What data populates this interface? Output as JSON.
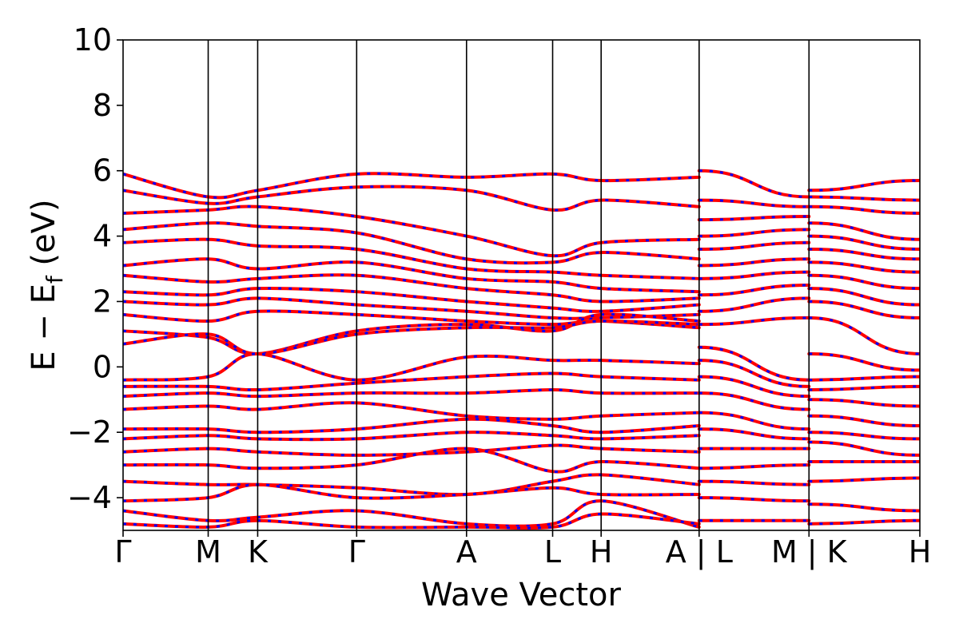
{
  "chart_data": {
    "type": "line",
    "title": "",
    "xlabel": "Wave Vector",
    "ylabel": {
      "main": "E − E",
      "sub": "f",
      "unit": " (eV)"
    },
    "ylim": [
      -5,
      10
    ],
    "yticks": [
      -4,
      -2,
      0,
      2,
      4,
      6,
      8,
      10
    ],
    "ytick_labels": [
      "−4",
      "−2",
      "0",
      "2",
      "4",
      "6",
      "8",
      "10"
    ],
    "xlim": [
      0,
      8.05
    ],
    "kpoints": [
      {
        "label": "Γ",
        "x": 0
      },
      {
        "label": "M",
        "x": 0.86
      },
      {
        "label": "K",
        "x": 1.36
      },
      {
        "label": "Γ",
        "x": 2.36
      },
      {
        "label": "A",
        "x": 3.47
      },
      {
        "label": "L",
        "x": 4.34
      },
      {
        "label": "H",
        "x": 4.83
      },
      {
        "label": "A | L",
        "x": 5.82
      },
      {
        "label": "M | K",
        "x": 6.93
      },
      {
        "label": "H",
        "x": 8.05
      }
    ],
    "segment_breaks": [
      5.82,
      6.93
    ],
    "grid": false,
    "legend": "none",
    "colors": {
      "spin_a": "#ff0000",
      "spin_b": "#0000ff"
    },
    "series": [
      {
        "x": [
          0,
          0.86,
          1.36,
          2.36,
          3.47,
          4.34,
          4.83,
          5.82
        ],
        "values": [
          5.9,
          5.2,
          5.4,
          5.9,
          5.8,
          5.9,
          5.7,
          5.8
        ]
      },
      {
        "x": [
          0,
          0.86,
          1.36,
          2.36,
          3.47,
          4.34,
          4.83,
          5.82
        ],
        "values": [
          5.4,
          5.0,
          5.2,
          5.5,
          5.4,
          4.8,
          5.1,
          4.9
        ]
      },
      {
        "x": [
          0,
          0.86,
          1.36,
          2.36,
          3.47,
          4.34,
          4.83,
          5.82
        ],
        "values": [
          4.7,
          4.8,
          4.9,
          4.6,
          4.0,
          3.4,
          3.8,
          3.9
        ]
      },
      {
        "x": [
          0,
          0.86,
          1.36,
          2.36,
          3.47,
          4.34,
          4.83,
          5.82
        ],
        "values": [
          4.2,
          4.4,
          4.3,
          4.1,
          3.3,
          3.2,
          3.5,
          3.3
        ]
      },
      {
        "x": [
          0,
          0.86,
          1.36,
          2.36,
          3.47,
          4.34,
          4.83,
          5.82
        ],
        "values": [
          3.8,
          3.9,
          3.7,
          3.6,
          3.0,
          2.9,
          2.8,
          2.7
        ]
      },
      {
        "x": [
          0,
          0.86,
          1.36,
          2.36,
          3.47,
          4.34,
          4.83,
          5.82
        ],
        "values": [
          3.1,
          3.3,
          3.0,
          3.2,
          2.7,
          2.6,
          2.4,
          2.3
        ]
      },
      {
        "x": [
          0,
          0.86,
          1.36,
          2.36,
          3.47,
          4.34,
          4.83,
          5.82
        ],
        "values": [
          2.8,
          2.6,
          2.7,
          2.8,
          2.4,
          2.2,
          2.0,
          2.1
        ]
      },
      {
        "x": [
          0,
          0.86,
          1.36,
          2.36,
          3.47,
          4.34,
          4.83,
          5.82
        ],
        "values": [
          2.3,
          2.2,
          2.4,
          2.3,
          2.0,
          1.8,
          1.7,
          1.9
        ]
      },
      {
        "x": [
          0,
          0.86,
          1.36,
          2.36,
          3.47,
          4.34,
          4.83,
          5.82
        ],
        "values": [
          2.0,
          1.9,
          2.1,
          1.9,
          1.7,
          1.5,
          1.5,
          1.6
        ]
      },
      {
        "x": [
          0,
          0.86,
          1.36,
          2.36,
          3.47,
          4.34,
          4.83,
          5.82
        ],
        "values": [
          1.6,
          1.4,
          1.7,
          1.6,
          1.4,
          1.3,
          1.4,
          1.2
        ]
      },
      {
        "x": [
          0,
          0.86,
          1.36,
          2.36,
          3.47,
          4.34,
          4.83,
          5.82
        ],
        "values": [
          1.1,
          0.9,
          0.4,
          1.1,
          1.3,
          1.1,
          1.6,
          1.4
        ]
      },
      {
        "x": [
          0,
          0.86,
          1.36,
          2.36,
          3.47,
          4.34,
          4.83,
          5.82
        ],
        "values": [
          0.7,
          1.0,
          0.4,
          1.0,
          1.2,
          1.2,
          1.4,
          1.3
        ]
      },
      {
        "x": [
          0,
          0.86,
          1.36,
          2.36,
          3.47,
          4.34,
          4.83,
          5.82
        ],
        "values": [
          -0.4,
          -0.3,
          0.4,
          -0.4,
          0.3,
          0.2,
          0.2,
          0.1
        ]
      },
      {
        "x": [
          0,
          0.86,
          1.36,
          2.36,
          3.47,
          4.34,
          4.83,
          5.82
        ],
        "values": [
          -0.6,
          -0.6,
          -0.7,
          -0.5,
          -0.3,
          -0.2,
          -0.3,
          -0.4
        ]
      },
      {
        "x": [
          0,
          0.86,
          1.36,
          2.36,
          3.47,
          4.34,
          4.83,
          5.82
        ],
        "values": [
          -0.9,
          -0.8,
          -0.9,
          -0.8,
          -0.8,
          -0.7,
          -0.8,
          -0.8
        ]
      },
      {
        "x": [
          0,
          0.86,
          1.36,
          2.36,
          3.47,
          4.34,
          4.83,
          5.82
        ],
        "values": [
          -1.3,
          -1.2,
          -1.3,
          -1.1,
          -1.5,
          -1.6,
          -1.5,
          -1.4
        ]
      },
      {
        "x": [
          0,
          0.86,
          1.36,
          2.36,
          3.47,
          4.34,
          4.83,
          5.82
        ],
        "values": [
          -1.9,
          -1.9,
          -2.0,
          -1.9,
          -1.6,
          -1.8,
          -2.0,
          -1.8
        ]
      },
      {
        "x": [
          0,
          0.86,
          1.36,
          2.36,
          3.47,
          4.34,
          4.83,
          5.82
        ],
        "values": [
          -2.2,
          -2.1,
          -2.2,
          -2.2,
          -2.0,
          -2.1,
          -2.2,
          -2.1
        ]
      },
      {
        "x": [
          0,
          0.86,
          1.36,
          2.36,
          3.47,
          4.34,
          4.83,
          5.82
        ],
        "values": [
          -2.6,
          -2.5,
          -2.6,
          -2.7,
          -2.6,
          -2.4,
          -2.5,
          -2.6
        ]
      },
      {
        "x": [
          0,
          0.86,
          1.36,
          2.36,
          3.47,
          4.34,
          4.83,
          5.82
        ],
        "values": [
          -3.0,
          -3.0,
          -3.1,
          -3.0,
          -2.5,
          -3.2,
          -2.9,
          -3.1
        ]
      },
      {
        "x": [
          0,
          0.86,
          1.36,
          2.36,
          3.47,
          4.34,
          4.83,
          5.82
        ],
        "values": [
          -3.5,
          -3.6,
          -3.6,
          -3.7,
          -3.9,
          -3.5,
          -3.3,
          -3.6
        ]
      },
      {
        "x": [
          0,
          0.86,
          1.36,
          2.36,
          3.47,
          4.34,
          4.83,
          5.82
        ],
        "values": [
          -4.1,
          -4.0,
          -3.6,
          -4.0,
          -3.9,
          -3.7,
          -3.9,
          -3.9
        ]
      },
      {
        "x": [
          0,
          0.86,
          1.36,
          2.36,
          3.47,
          4.34,
          4.83,
          5.82
        ],
        "values": [
          -4.4,
          -4.7,
          -4.6,
          -4.4,
          -4.8,
          -4.8,
          -4.1,
          -4.9
        ]
      },
      {
        "x": [
          0,
          0.86,
          1.36,
          2.36,
          3.47,
          4.34,
          4.83,
          5.82
        ],
        "values": [
          -4.8,
          -4.9,
          -4.7,
          -4.9,
          -4.9,
          -4.9,
          -4.5,
          -4.8
        ]
      },
      {
        "x": [
          5.82,
          6.93
        ],
        "values": [
          6.0,
          5.2
        ]
      },
      {
        "x": [
          5.82,
          6.93
        ],
        "values": [
          5.1,
          4.9
        ]
      },
      {
        "x": [
          5.82,
          6.93
        ],
        "values": [
          4.5,
          4.6
        ]
      },
      {
        "x": [
          5.82,
          6.93
        ],
        "values": [
          4.0,
          4.2
        ]
      },
      {
        "x": [
          5.82,
          6.93
        ],
        "values": [
          3.6,
          3.8
        ]
      },
      {
        "x": [
          5.82,
          6.93
        ],
        "values": [
          3.1,
          3.3
        ]
      },
      {
        "x": [
          5.82,
          6.93
        ],
        "values": [
          2.7,
          2.9
        ]
      },
      {
        "x": [
          5.82,
          6.93
        ],
        "values": [
          2.2,
          2.5
        ]
      },
      {
        "x": [
          5.82,
          6.93
        ],
        "values": [
          1.7,
          2.1
        ]
      },
      {
        "x": [
          5.82,
          6.93
        ],
        "values": [
          1.3,
          1.5
        ]
      },
      {
        "x": [
          5.82,
          6.93
        ],
        "values": [
          0.6,
          -0.4
        ]
      },
      {
        "x": [
          5.82,
          6.93
        ],
        "values": [
          0.2,
          -0.6
        ]
      },
      {
        "x": [
          5.82,
          6.93
        ],
        "values": [
          -0.3,
          -0.9
        ]
      },
      {
        "x": [
          5.82,
          6.93
        ],
        "values": [
          -0.8,
          -1.3
        ]
      },
      {
        "x": [
          5.82,
          6.93
        ],
        "values": [
          -1.4,
          -1.9
        ]
      },
      {
        "x": [
          5.82,
          6.93
        ],
        "values": [
          -1.9,
          -2.2
        ]
      },
      {
        "x": [
          5.82,
          6.93
        ],
        "values": [
          -2.5,
          -2.5
        ]
      },
      {
        "x": [
          5.82,
          6.93
        ],
        "values": [
          -3.1,
          -3.0
        ]
      },
      {
        "x": [
          5.82,
          6.93
        ],
        "values": [
          -3.5,
          -3.6
        ]
      },
      {
        "x": [
          5.82,
          6.93
        ],
        "values": [
          -4.0,
          -4.1
        ]
      },
      {
        "x": [
          5.82,
          6.93
        ],
        "values": [
          -4.7,
          -4.7
        ]
      },
      {
        "x": [
          6.93,
          8.05
        ],
        "values": [
          5.4,
          5.7
        ]
      },
      {
        "x": [
          6.93,
          8.05
        ],
        "values": [
          5.2,
          5.1
        ]
      },
      {
        "x": [
          6.93,
          8.05
        ],
        "values": [
          4.9,
          4.7
        ]
      },
      {
        "x": [
          6.93,
          8.05
        ],
        "values": [
          4.4,
          3.9
        ]
      },
      {
        "x": [
          6.93,
          8.05
        ],
        "values": [
          4.0,
          3.6
        ]
      },
      {
        "x": [
          6.93,
          8.05
        ],
        "values": [
          3.6,
          3.3
        ]
      },
      {
        "x": [
          6.93,
          8.05
        ],
        "values": [
          3.2,
          2.9
        ]
      },
      {
        "x": [
          6.93,
          8.05
        ],
        "values": [
          2.8,
          2.4
        ]
      },
      {
        "x": [
          6.93,
          8.05
        ],
        "values": [
          2.4,
          1.9
        ]
      },
      {
        "x": [
          6.93,
          8.05
        ],
        "values": [
          2.0,
          1.5
        ]
      },
      {
        "x": [
          6.93,
          8.05
        ],
        "values": [
          1.5,
          0.4
        ]
      },
      {
        "x": [
          6.93,
          8.05
        ],
        "values": [
          0.4,
          -0.1
        ]
      },
      {
        "x": [
          6.93,
          8.05
        ],
        "values": [
          -0.4,
          -0.3
        ]
      },
      {
        "x": [
          6.93,
          8.05
        ],
        "values": [
          -0.7,
          -0.6
        ]
      },
      {
        "x": [
          6.93,
          8.05
        ],
        "values": [
          -1.0,
          -1.2
        ]
      },
      {
        "x": [
          6.93,
          8.05
        ],
        "values": [
          -1.5,
          -1.8
        ]
      },
      {
        "x": [
          6.93,
          8.05
        ],
        "values": [
          -2.0,
          -2.2
        ]
      },
      {
        "x": [
          6.93,
          8.05
        ],
        "values": [
          -2.3,
          -2.7
        ]
      },
      {
        "x": [
          6.93,
          8.05
        ],
        "values": [
          -2.9,
          -2.9
        ]
      },
      {
        "x": [
          6.93,
          8.05
        ],
        "values": [
          -3.5,
          -3.4
        ]
      },
      {
        "x": [
          6.93,
          8.05
        ],
        "values": [
          -4.2,
          -4.4
        ]
      },
      {
        "x": [
          6.93,
          8.05
        ],
        "values": [
          -4.8,
          -4.7
        ]
      }
    ]
  }
}
